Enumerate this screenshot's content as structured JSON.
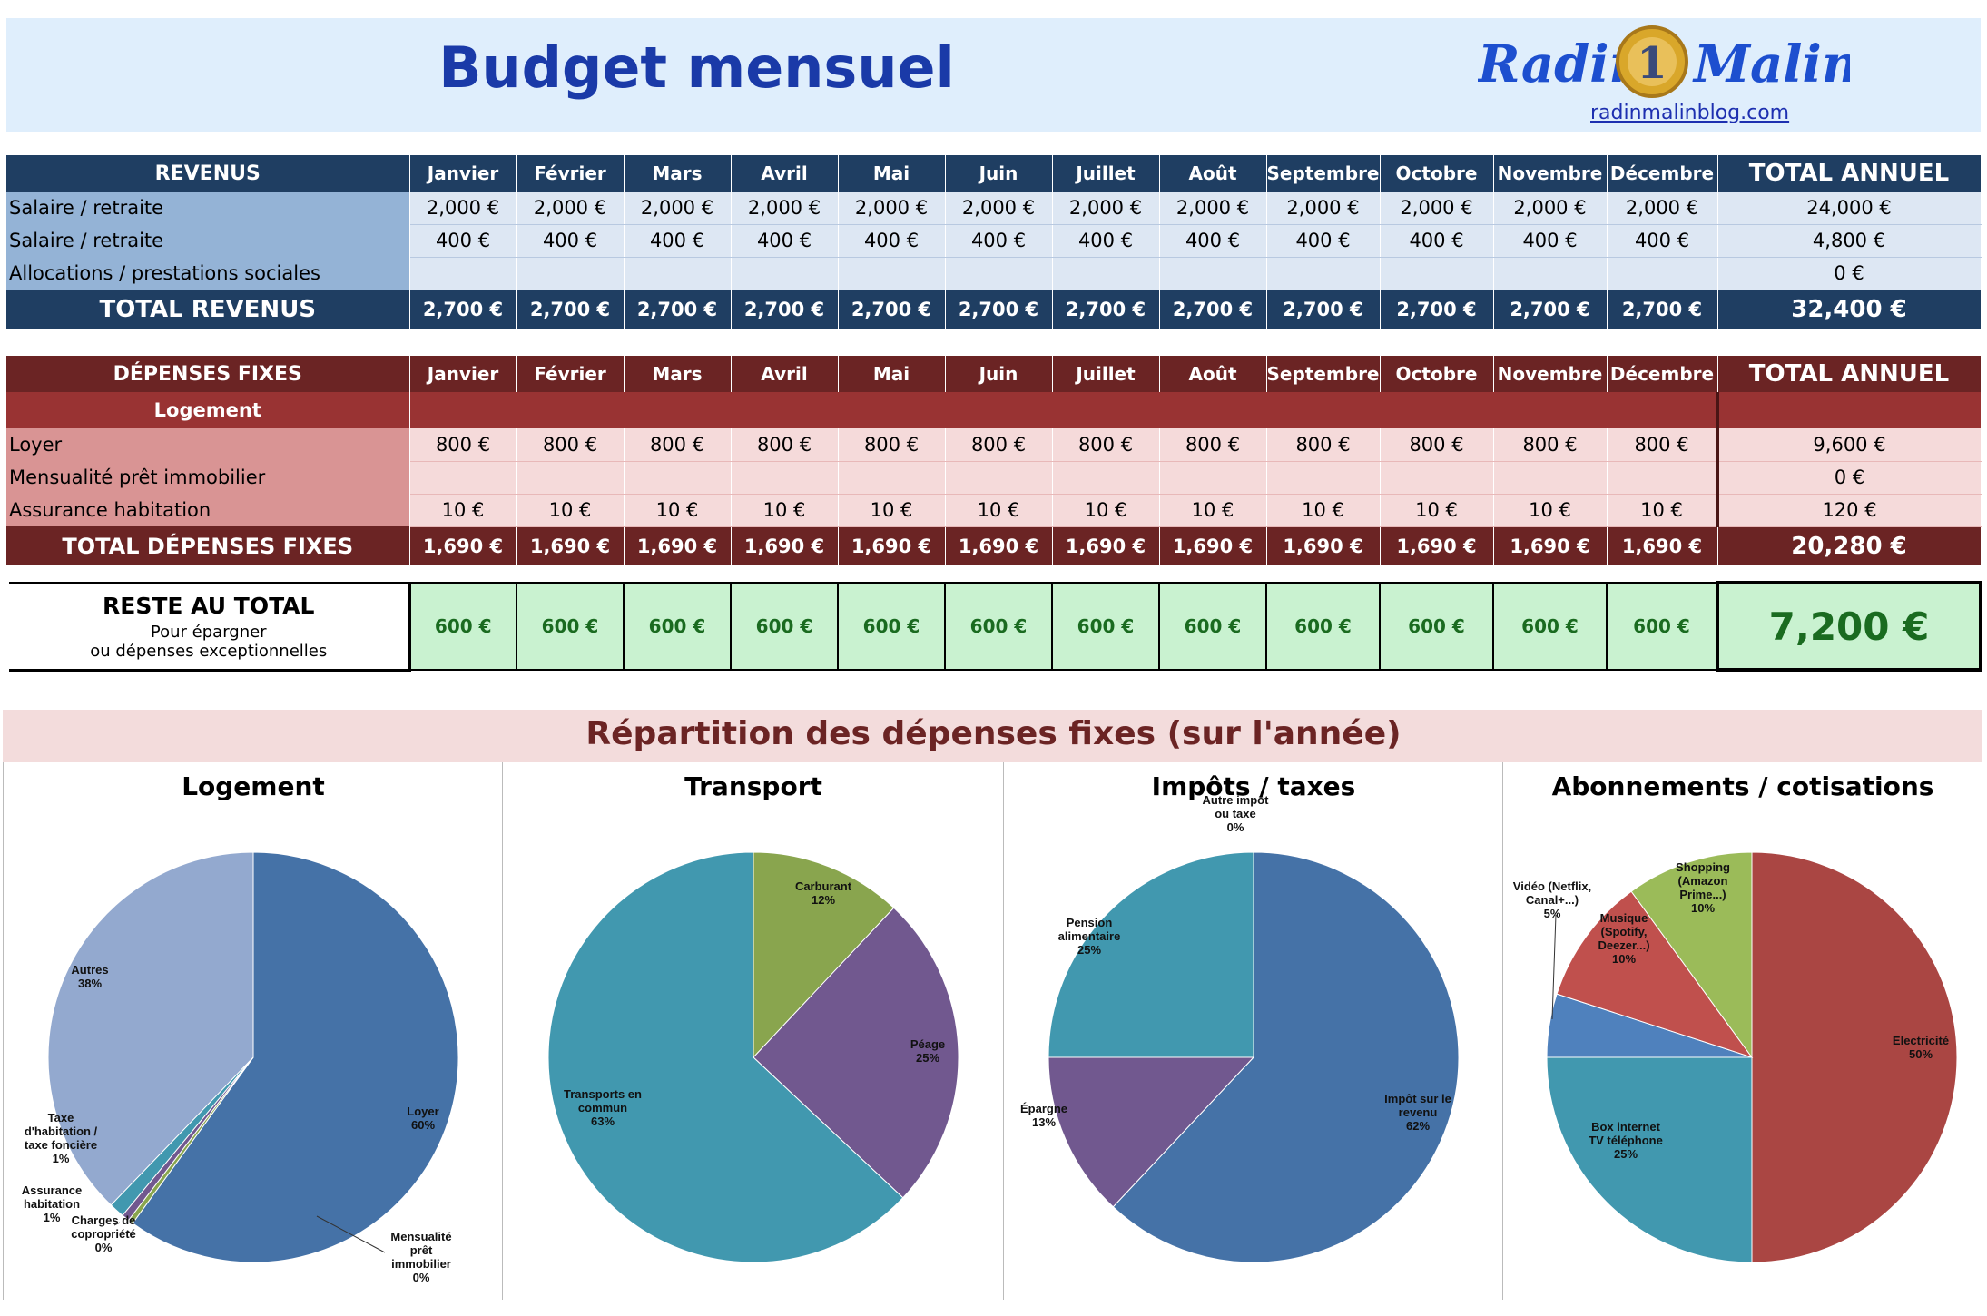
{
  "header": {
    "title": "Budget mensuel",
    "logo_left": "Radin",
    "logo_right": "Malin",
    "coin_digit": "1",
    "site": "radinmalinblog.com"
  },
  "months": [
    "Janvier",
    "Février",
    "Mars",
    "Avril",
    "Mai",
    "Juin",
    "Juillet",
    "Août",
    "Septembre",
    "Octobre",
    "Novembre",
    "Décembre"
  ],
  "revenus": {
    "header": "REVENUS",
    "total_col": "TOTAL ANNUEL",
    "rows": [
      {
        "label": "Salaire / retraite",
        "values": [
          "2,000 €",
          "2,000 €",
          "2,000 €",
          "2,000 €",
          "2,000 €",
          "2,000 €",
          "2,000 €",
          "2,000 €",
          "2,000 €",
          "2,000 €",
          "2,000 €",
          "2,000 €"
        ],
        "total": "24,000 €"
      },
      {
        "label": "Salaire / retraite",
        "values": [
          "400 €",
          "400 €",
          "400 €",
          "400 €",
          "400 €",
          "400 €",
          "400 €",
          "400 €",
          "400 €",
          "400 €",
          "400 €",
          "400 €"
        ],
        "total": "4,800 €"
      },
      {
        "label": "Allocations / prestations sociales",
        "values": [
          "",
          "",
          "",
          "",
          "",
          "",
          "",
          "",
          "",
          "",
          "",
          ""
        ],
        "total": "0 €"
      }
    ],
    "total": {
      "label": "TOTAL REVENUS",
      "values": [
        "2,700 €",
        "2,700 €",
        "2,700 €",
        "2,700 €",
        "2,700 €",
        "2,700 €",
        "2,700 €",
        "2,700 €",
        "2,700 €",
        "2,700 €",
        "2,700 €",
        "2,700 €"
      ],
      "total": "32,400 €"
    }
  },
  "depenses": {
    "header": "DÉPENSES FIXES",
    "total_col": "TOTAL ANNUEL",
    "section": "Logement",
    "rows": [
      {
        "label": "Loyer",
        "values": [
          "800 €",
          "800 €",
          "800 €",
          "800 €",
          "800 €",
          "800 €",
          "800 €",
          "800 €",
          "800 €",
          "800 €",
          "800 €",
          "800 €"
        ],
        "total": "9,600 €"
      },
      {
        "label": "Mensualité prêt immobilier",
        "values": [
          "",
          "",
          "",
          "",
          "",
          "",
          "",
          "",
          "",
          "",
          "",
          ""
        ],
        "total": "0 €"
      },
      {
        "label": "Assurance habitation",
        "values": [
          "10 €",
          "10 €",
          "10 €",
          "10 €",
          "10 €",
          "10 €",
          "10 €",
          "10 €",
          "10 €",
          "10 €",
          "10 €",
          "10 €"
        ],
        "total": "120 €"
      }
    ],
    "total": {
      "label": "TOTAL DÉPENSES FIXES",
      "values": [
        "1,690 €",
        "1,690 €",
        "1,690 €",
        "1,690 €",
        "1,690 €",
        "1,690 €",
        "1,690 €",
        "1,690 €",
        "1,690 €",
        "1,690 €",
        "1,690 €",
        "1,690 €"
      ],
      "total": "20,280 €"
    }
  },
  "reste": {
    "title": "RESTE AU TOTAL",
    "sub1": "Pour épargner",
    "sub2": "ou dépenses exceptionnelles",
    "values": [
      "600 €",
      "600 €",
      "600 €",
      "600 €",
      "600 €",
      "600 €",
      "600 €",
      "600 €",
      "600 €",
      "600 €",
      "600 €",
      "600 €"
    ],
    "total": "7,200 €"
  },
  "repartition_title": "Répartition des dépenses fixes (sur l'année)",
  "chart_data": [
    {
      "type": "pie",
      "title": "Logement",
      "slices": [
        {
          "label": [
            "Loyer"
          ],
          "pct": "60%",
          "value": 60,
          "color": "#4572a7"
        },
        {
          "label": [
            "Mensualité",
            "prêt",
            "immobilier"
          ],
          "pct": "0%",
          "value": 0,
          "color": "#aa4643"
        },
        {
          "label": [
            "Charges de",
            "copropriété"
          ],
          "pct": "0%",
          "value": 0.4,
          "color": "#89a54e"
        },
        {
          "label": [
            "Assurance",
            "habitation"
          ],
          "pct": "1%",
          "value": 0.6,
          "color": "#71588f"
        },
        {
          "label": [
            "Taxe",
            "d'habitation /",
            "taxe foncière"
          ],
          "pct": "1%",
          "value": 1.2,
          "color": "#4198af"
        },
        {
          "label": [
            "Autres"
          ],
          "pct": "38%",
          "value": 37.8,
          "color": "#93a9cf"
        }
      ]
    },
    {
      "type": "pie",
      "title": "Transport",
      "slices": [
        {
          "label": [
            "Carburant"
          ],
          "pct": "12%",
          "value": 12,
          "color": "#89a54e"
        },
        {
          "label": [
            "Péage"
          ],
          "pct": "25%",
          "value": 25,
          "color": "#71588f"
        },
        {
          "label": [
            "Transports en",
            "commun"
          ],
          "pct": "63%",
          "value": 63,
          "color": "#4198af"
        }
      ]
    },
    {
      "type": "pie",
      "title": "Impôts / taxes",
      "slices": [
        {
          "label": [
            "Impôt sur le",
            "revenu"
          ],
          "pct": "62%",
          "value": 62,
          "color": "#4572a7"
        },
        {
          "label": [
            "Épargne"
          ],
          "pct": "13%",
          "value": 13,
          "color": "#71588f"
        },
        {
          "label": [
            "Pension",
            "alimentaire"
          ],
          "pct": "25%",
          "value": 25,
          "color": "#4198af"
        },
        {
          "label": [
            "Autre impôt",
            "ou taxe"
          ],
          "pct": "0%",
          "value": 0,
          "color": "#89a54e"
        }
      ]
    },
    {
      "type": "pie",
      "title": "Abonnements / cotisations",
      "slices": [
        {
          "label": [
            "Electricité"
          ],
          "pct": "50%",
          "value": 50,
          "color": "#aa4643"
        },
        {
          "label": [
            "Box internet",
            "TV téléphone"
          ],
          "pct": "25%",
          "value": 25,
          "color": "#4198af"
        },
        {
          "label": [
            "Vidéo (Netflix,",
            "Canal+...)"
          ],
          "pct": "5%",
          "value": 5,
          "color": "#4f81bd"
        },
        {
          "label": [
            "Musique",
            "(Spotify,",
            "Deezer...)"
          ],
          "pct": "10%",
          "value": 10,
          "color": "#c0504d"
        },
        {
          "label": [
            "Shopping",
            "(Amazon",
            "Prime...)"
          ],
          "pct": "10%",
          "value": 10,
          "color": "#9bbb59"
        }
      ]
    }
  ]
}
